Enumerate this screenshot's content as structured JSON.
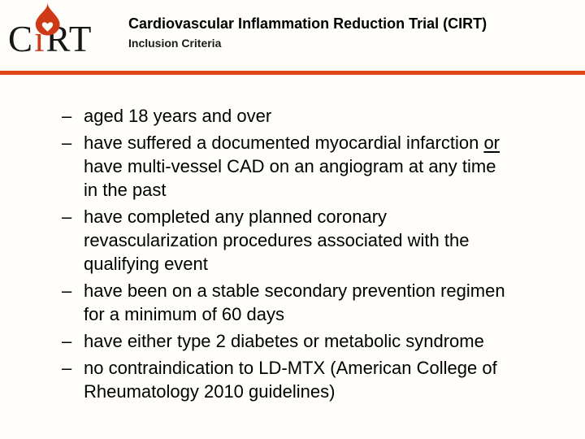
{
  "slide": {
    "background": "#fffefb",
    "accent_color": "#df4716"
  },
  "logo": {
    "alt": "CIRT torch logo",
    "letters_left": "C",
    "torch_letter": "i",
    "letters_right": "RT",
    "flame_color": "#ce3a16",
    "letter_color": "#161616"
  },
  "header": {
    "title": "Cardiovascular Inflammation Reduction Trial (CIRT)",
    "subtitle": "Inclusion Criteria"
  },
  "bullets": [
    {
      "marker": "–",
      "lines": [
        [
          {
            "t": "aged 18 years and over"
          }
        ]
      ]
    },
    {
      "marker": "–",
      "lines": [
        [
          {
            "t": "have suffered a documented myocardial infarction "
          },
          {
            "t": "or",
            "u": true
          }
        ],
        [
          {
            "t": "have multi-vessel CAD on an angiogram at any time"
          }
        ],
        [
          {
            "t": "in the past"
          }
        ]
      ]
    },
    {
      "marker": "–",
      "lines": [
        [
          {
            "t": "have completed any planned coronary"
          }
        ],
        [
          {
            "t": "revascularization procedures associated with the"
          }
        ],
        [
          {
            "t": "qualifying event"
          }
        ]
      ]
    },
    {
      "marker": "–",
      "lines": [
        [
          {
            "t": "have been on a stable secondary prevention regimen"
          }
        ],
        [
          {
            "t": "for a minimum of 60 days"
          }
        ]
      ]
    },
    {
      "marker": "–",
      "lines": [
        [
          {
            "t": "have either type 2 diabetes or metabolic syndrome"
          }
        ]
      ]
    },
    {
      "marker": "–",
      "lines": [
        [
          {
            "t": "no contraindication to LD-MTX (American College of"
          }
        ],
        [
          {
            "t": "Rheumatology 2010 guidelines)"
          }
        ]
      ]
    }
  ]
}
